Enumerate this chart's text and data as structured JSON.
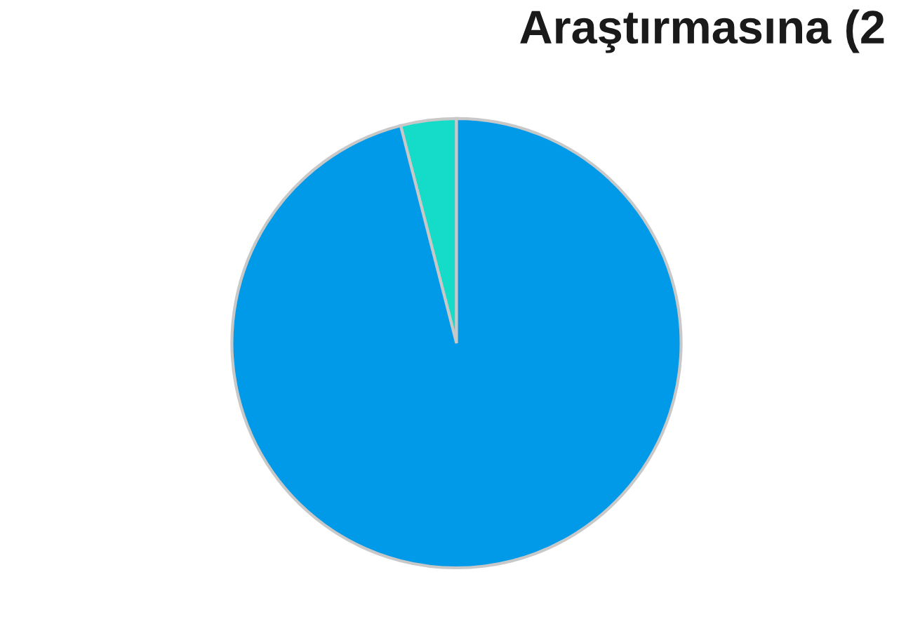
{
  "chart_data": {
    "type": "pie",
    "title": "Araştırmasına (2",
    "categories": [
      null,
      null
    ],
    "values": [
      4,
      96
    ],
    "colors": [
      "#15dcc8",
      "#009ae8"
    ]
  }
}
